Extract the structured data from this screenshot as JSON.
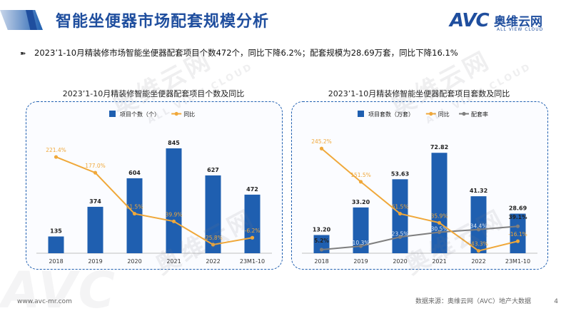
{
  "header": {
    "title": "智能坐便器市场配套规模分析",
    "logo_mark": "AVC",
    "logo_cn": "奥维云网",
    "logo_en": "ALL VIEW CLOUD"
  },
  "summary": {
    "bullet": "➽",
    "text": "2023’1-10月精装修市场智能坐便器配套项目个数472个，同比下降6.2%；配套规模为28.69万套，同比下降16.1%"
  },
  "watermarks": {
    "cn": "奥维云网",
    "en": "ALL VIEW CLOUD",
    "big": "AVC"
  },
  "footer": {
    "url": "www.avc-mr.com",
    "source": "数据来源：奥维云网（AVC）地产大数据",
    "page": "4"
  },
  "colors": {
    "bar": "#1f5fb0",
    "line_yoy": "#f0a83a",
    "line_rate": "#7f7f7f"
  },
  "chart_data": [
    {
      "type": "bar",
      "title": "2023’1-10月精装修智能坐便器配套项目个数及同比",
      "categories": [
        "2018",
        "2019",
        "2020",
        "2021",
        "2022",
        "23M1-10"
      ],
      "legend": [
        "项目个数（个）",
        "同比"
      ],
      "series": [
        {
          "name": "项目个数（个）",
          "kind": "bar",
          "values": [
            135,
            374,
            604,
            845,
            627,
            472
          ],
          "labels": [
            "135",
            "374",
            "604",
            "845",
            "627",
            "472"
          ]
        },
        {
          "name": "同比",
          "kind": "line",
          "values": [
            221.4,
            177.0,
            61.5,
            39.9,
            -25.8,
            -6.2
          ],
          "labels": [
            "221.4%",
            "177.0%",
            "61.5%",
            "39.9%",
            "-25.8%",
            "-6.2%"
          ]
        }
      ],
      "ylim_bar": [
        0,
        1000
      ],
      "ylim_line": [
        -50,
        300
      ]
    },
    {
      "type": "bar",
      "title": "2023’1-10月精装修智能坐便器配套项目套数及同比",
      "categories": [
        "2018",
        "2019",
        "2020",
        "2021",
        "2022",
        "23M1-10"
      ],
      "legend": [
        "项目套数（万套）",
        "同比",
        "配套率"
      ],
      "series": [
        {
          "name": "项目套数（万套）",
          "kind": "bar",
          "values": [
            13.2,
            33.2,
            53.63,
            72.82,
            41.32,
            28.69
          ],
          "labels": [
            "13.20",
            "33.20",
            "53.63",
            "72.82",
            "41.32",
            "28.69"
          ]
        },
        {
          "name": "同比",
          "kind": "line",
          "values": [
            245.2,
            151.5,
            61.5,
            35.9,
            -43.3,
            -16.1
          ],
          "labels": [
            "245.2%",
            "151.5%",
            "61.5%",
            "35.9%",
            "-43.3%",
            "-16.1%"
          ]
        },
        {
          "name": "配套率",
          "kind": "line",
          "values": [
            5.2,
            10.3,
            23.5,
            30.5,
            34.4,
            39.1
          ],
          "labels": [
            "5.2%",
            "10.3%",
            "23.5%",
            "30.5%",
            "34.4%",
            "39.1%"
          ]
        }
      ],
      "ylim_bar": [
        0,
        90
      ],
      "ylim_line": [
        -50,
        300
      ],
      "ylim_rate": [
        0,
        180
      ]
    }
  ]
}
